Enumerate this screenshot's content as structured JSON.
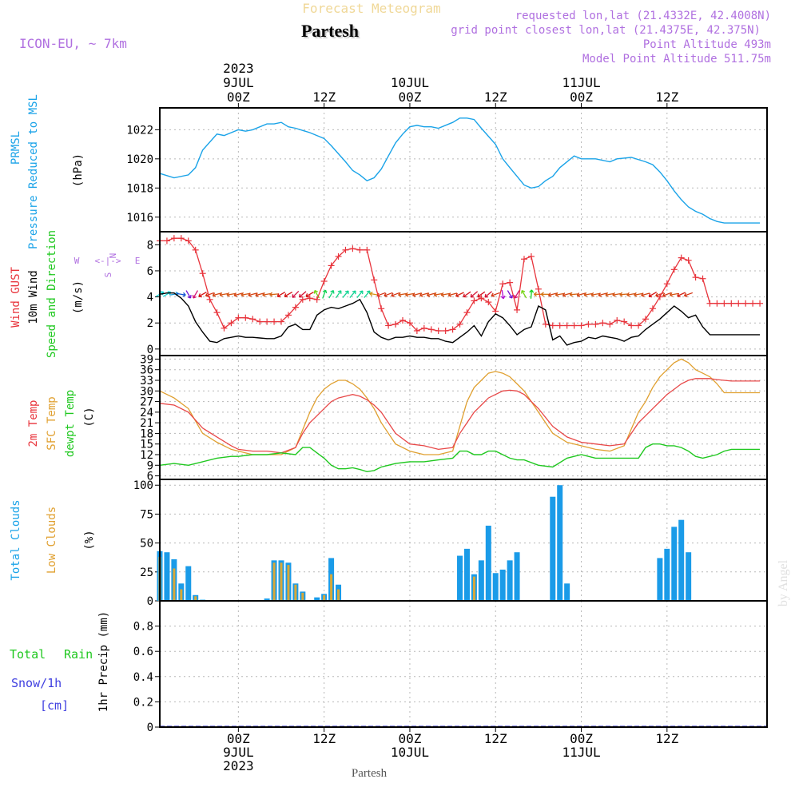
{
  "header": {
    "title": "Partesh",
    "subtitle": "Forecast Meteogram",
    "model": "ICON-EU, ~ 7km",
    "requested": "requested lon,lat (21.4332E, 42.4008N)",
    "grid_point": "grid point closest lon,lat (21.4375E, 42.375N)",
    "point_altitude": "Point Altitude 493m",
    "model_altitude": "Model Point Altitude 511.75m",
    "credit": "by Angel",
    "footer": "Partesh"
  },
  "time_axis": {
    "top_ticks": [
      {
        "hour": 0,
        "lines": [
          "2023",
          "9JUL",
          "00Z"
        ]
      },
      {
        "hour": 12,
        "lines": [
          "12Z"
        ]
      },
      {
        "hour": 24,
        "lines": [
          "10JUL",
          "00Z"
        ]
      },
      {
        "hour": 36,
        "lines": [
          "12Z"
        ]
      },
      {
        "hour": 48,
        "lines": [
          "11JUL",
          "00Z"
        ]
      },
      {
        "hour": 60,
        "lines": [
          "12Z"
        ]
      }
    ],
    "bottom_ticks": [
      {
        "hour": 0,
        "lines": [
          "00Z",
          "9JUL",
          "2023"
        ]
      },
      {
        "hour": 12,
        "lines": [
          "12Z"
        ]
      },
      {
        "hour": 24,
        "lines": [
          "00Z",
          "10JUL"
        ]
      },
      {
        "hour": 36,
        "lines": [
          "12Z"
        ]
      },
      {
        "hour": 48,
        "lines": [
          "00Z",
          "11JUL"
        ]
      },
      {
        "hour": 60,
        "lines": [
          "12Z"
        ]
      }
    ]
  },
  "panels": {
    "pressure": {
      "labels": [
        "PRMSL",
        "Pressure Reduced to MSL"
      ],
      "unit": "(hPa)"
    },
    "wind": {
      "labels": [
        "Wind GUST",
        "10m Wind",
        "Speed and Direction"
      ],
      "unit": "(m/s)",
      "compass": {
        "n": "N",
        "s": "S",
        "w": "W",
        "e": "E",
        "arrows_ns": "^ | v",
        "arrows_we": "<-|->"
      }
    },
    "temp": {
      "labels": [
        "2m Temp",
        "SFC Temp",
        "dewpt Temp"
      ],
      "unit": "(C)"
    },
    "clouds": {
      "labels": [
        "Total Clouds",
        "Low Clouds"
      ],
      "unit": "(%)"
    },
    "precip": {
      "labels": [
        "Total",
        "Rain",
        "Snow/1h",
        "[cm]"
      ],
      "axis_label": "1hr Precip (mm)"
    }
  },
  "colors": {
    "pressure": "#1aa3e8",
    "gust": "#e8343c",
    "wind": "#000000",
    "temp2m": "#e84848",
    "sfc": "#e0a030",
    "dewpt": "#20c820",
    "total_clouds": "#1a9be8",
    "low_clouds": "#d8a838",
    "purple_text": "#b070e0",
    "rain_text": "#20c820",
    "snow_text": "#4040e0"
  },
  "chart_data": [
    {
      "type": "line",
      "name": "pressure",
      "ylim": [
        1015,
        1023.5
      ],
      "yticks": [
        1016,
        1018,
        1020,
        1022
      ],
      "xlim": [
        -11,
        74
      ],
      "x": [
        -11,
        -9,
        -7,
        -6,
        -5,
        -3,
        -2,
        0,
        1,
        2,
        4,
        5,
        6,
        7,
        8,
        10,
        12,
        13,
        15,
        16,
        17,
        18,
        19,
        20,
        21,
        22,
        23,
        24,
        25,
        26,
        27,
        28,
        30,
        31,
        32,
        33,
        34,
        36,
        37,
        38,
        39,
        40,
        41,
        42,
        43,
        44,
        45,
        47,
        48,
        50,
        52,
        53,
        55,
        57,
        58,
        59,
        60,
        61,
        62,
        63,
        64,
        65,
        66,
        67,
        68,
        69,
        70,
        71,
        72,
        73
      ],
      "series": [
        {
          "name": "PRMSL",
          "values": [
            1019,
            1018.7,
            1018.9,
            1019.4,
            1020.6,
            1021.7,
            1021.6,
            1022.0,
            1021.9,
            1022.0,
            1022.4,
            1022.4,
            1022.5,
            1022.2,
            1022.1,
            1021.8,
            1021.4,
            1020.9,
            1019.8,
            1019.2,
            1018.9,
            1018.5,
            1018.7,
            1019.3,
            1020.2,
            1021.1,
            1021.7,
            1022.2,
            1022.3,
            1022.2,
            1022.2,
            1022.1,
            1022.5,
            1022.8,
            1022.8,
            1022.7,
            1022.1,
            1021.0,
            1020.0,
            1019.4,
            1018.8,
            1018.2,
            1018.0,
            1018.1,
            1018.5,
            1018.8,
            1019.4,
            1020.2,
            1020.0,
            1020.0,
            1019.8,
            1020.0,
            1020.1,
            1019.8,
            1019.6,
            1019.1,
            1018.5,
            1017.8,
            1017.2,
            1016.7,
            1016.4,
            1016.2,
            1015.9,
            1015.7,
            1015.6,
            1015.6,
            1015.6,
            1015.6,
            1015.6,
            1015.6
          ]
        }
      ]
    },
    {
      "type": "line",
      "name": "wind",
      "ylim": [
        -0.5,
        9
      ],
      "yticks": [
        0,
        2,
        4,
        6,
        8
      ],
      "xlim": [
        -11,
        74
      ],
      "x": [
        -11,
        -10,
        -9,
        -8,
        -7,
        -6,
        -5,
        -4,
        -3,
        -2,
        -1,
        0,
        1,
        2,
        3,
        4,
        5,
        6,
        7,
        8,
        9,
        10,
        11,
        12,
        13,
        14,
        15,
        16,
        17,
        18,
        19,
        20,
        21,
        22,
        23,
        24,
        25,
        26,
        27,
        28,
        29,
        30,
        31,
        32,
        33,
        34,
        35,
        36,
        37,
        38,
        39,
        40,
        41,
        42,
        43,
        44,
        45,
        46,
        47,
        48,
        49,
        50,
        51,
        52,
        53,
        54,
        55,
        56,
        57,
        58,
        59,
        60,
        61,
        62,
        63,
        64,
        65,
        66,
        67,
        68,
        69,
        70,
        71,
        72,
        73
      ],
      "series": [
        {
          "name": "Wind GUST",
          "values": [
            8.3,
            8.3,
            8.5,
            8.5,
            8.3,
            7.6,
            5.8,
            3.8,
            2.8,
            1.6,
            2.0,
            2.4,
            2.4,
            2.3,
            2.1,
            2.1,
            2.1,
            2.1,
            2.6,
            3.2,
            3.8,
            3.9,
            3.8,
            5.2,
            6.4,
            7.1,
            7.6,
            7.7,
            7.6,
            7.6,
            5.3,
            3.1,
            1.8,
            1.9,
            2.2,
            2.0,
            1.4,
            1.6,
            1.5,
            1.4,
            1.4,
            1.5,
            1.9,
            2.8,
            3.7,
            3.9,
            3.6,
            2.9,
            5.0,
            5.1,
            3.0,
            6.9,
            7.1,
            4.6,
            1.9,
            1.8,
            1.8,
            1.8,
            1.8,
            1.8,
            1.9,
            1.9,
            2.0,
            1.9,
            2.2,
            2.1,
            1.8,
            1.8,
            2.3,
            3.1,
            4.0,
            5.0,
            6.1,
            7.0,
            6.8,
            5.5,
            5.4,
            3.5,
            3.5,
            3.5,
            3.5,
            3.5,
            3.5,
            3.5,
            3.5
          ]
        },
        {
          "name": "10m Wind",
          "values": [
            4.2,
            4.3,
            4.3,
            3.9,
            3.3,
            2.1,
            1.3,
            0.6,
            0.5,
            0.8,
            0.9,
            1.0,
            0.9,
            0.9,
            0.85,
            0.8,
            0.8,
            1.0,
            1.7,
            1.9,
            1.5,
            1.5,
            2.6,
            3.0,
            3.2,
            3.1,
            3.3,
            3.5,
            3.8,
            2.8,
            1.3,
            0.9,
            0.7,
            0.9,
            0.9,
            1.0,
            0.9,
            0.9,
            0.8,
            0.8,
            0.6,
            0.5,
            0.9,
            1.3,
            1.8,
            1.0,
            2.1,
            2.7,
            2.4,
            1.8,
            1.1,
            1.5,
            1.7,
            3.3,
            3.0,
            0.7,
            1.0,
            0.3,
            0.5,
            0.6,
            0.9,
            0.8,
            1.0,
            0.9,
            0.8,
            0.6,
            0.9,
            1.0,
            1.5,
            1.9,
            2.3,
            2.8,
            3.3,
            2.9,
            2.4,
            2.6,
            1.7,
            1.1,
            1.1,
            1.1,
            1.1,
            1.1,
            1.1,
            1.1,
            1.1
          ]
        }
      ],
      "arrows": {
        "x": [
          -11,
          -10,
          -9,
          -8,
          -7,
          -6,
          -5,
          -4,
          -3,
          -2,
          -1,
          0,
          1,
          2,
          3,
          4,
          5,
          6,
          7,
          8,
          9,
          10,
          11,
          12,
          13,
          14,
          15,
          16,
          17,
          18,
          19,
          20,
          21,
          22,
          23,
          24,
          25,
          26,
          27,
          28,
          29,
          30,
          31,
          32,
          33,
          34,
          35,
          36,
          37,
          38,
          39,
          40,
          41,
          42,
          43,
          44,
          45,
          46,
          47,
          48,
          49,
          50,
          51,
          52,
          53,
          54,
          55,
          56,
          57,
          58,
          59,
          60,
          61,
          62,
          63
        ],
        "dir_deg": [
          60,
          60,
          80,
          100,
          150,
          210,
          240,
          250,
          255,
          260,
          260,
          255,
          260,
          255,
          255,
          260,
          265,
          240,
          240,
          225,
          230,
          240,
          330,
          20,
          30,
          35,
          40,
          40,
          40,
          40,
          280,
          250,
          250,
          250,
          260,
          260,
          255,
          255,
          255,
          260,
          260,
          255,
          245,
          235,
          230,
          235,
          230,
          250,
          170,
          150,
          210,
          330,
          5,
          270,
          270,
          255,
          260,
          255,
          265,
          255,
          260,
          260,
          255,
          260,
          260,
          265,
          260,
          260,
          255,
          240,
          250,
          250,
          260,
          245,
          250
        ]
      }
    },
    {
      "type": "line",
      "name": "temperature",
      "ylim": [
        5,
        40
      ],
      "yticks": [
        6,
        9,
        12,
        15,
        18,
        21,
        24,
        27,
        30,
        33,
        36,
        39
      ],
      "xlim": [
        -11,
        74
      ],
      "x": [
        -11,
        -9,
        -7,
        -5,
        -3,
        -1,
        0,
        2,
        4,
        6,
        8,
        9,
        10,
        11,
        12,
        13,
        14,
        15,
        16,
        17,
        18,
        19,
        20,
        21,
        22,
        24,
        26,
        28,
        30,
        31,
        32,
        33,
        34,
        35,
        36,
        37,
        38,
        39,
        40,
        42,
        44,
        46,
        48,
        50,
        52,
        54,
        56,
        57,
        58,
        59,
        60,
        61,
        62,
        63,
        64,
        65,
        66,
        67,
        68,
        69,
        70,
        71,
        72,
        73
      ],
      "series": [
        {
          "name": "2m Temp",
          "values": [
            26.5,
            26,
            24,
            19.5,
            17,
            14.5,
            13.5,
            13,
            13,
            12.5,
            14,
            18,
            21,
            23,
            25,
            27,
            28,
            28.5,
            29,
            28.5,
            27.5,
            26,
            24,
            21,
            18,
            15,
            14.5,
            13.5,
            14,
            18,
            21,
            24,
            26,
            28,
            29,
            30,
            30.2,
            30,
            29,
            25,
            20,
            17,
            15.5,
            15,
            14.5,
            15,
            21,
            23,
            25,
            27,
            29,
            30.5,
            32,
            33,
            33.5,
            33.5,
            33.5,
            33.2,
            33,
            32.8,
            32.8,
            32.8,
            32.8,
            32.8
          ]
        },
        {
          "name": "SFC Temp",
          "values": [
            30,
            28,
            25,
            18,
            15.5,
            13.5,
            13,
            12,
            12,
            12,
            14,
            19,
            24,
            28,
            30.5,
            32,
            33,
            33,
            32,
            30.5,
            28,
            25,
            21,
            18,
            15,
            13,
            12,
            12,
            13,
            20,
            27,
            31,
            33,
            35,
            35.5,
            35,
            34,
            32,
            30,
            24,
            18,
            15.5,
            14.5,
            13.5,
            13,
            14.5,
            24,
            27,
            31,
            34,
            36,
            38,
            39,
            38,
            36,
            35,
            34,
            32,
            29.5,
            29.5,
            29.5,
            29.5,
            29.5,
            29.5
          ]
        },
        {
          "name": "dewpt Temp",
          "values": [
            9,
            9.5,
            9,
            10,
            11,
            11.5,
            11.5,
            12,
            12,
            12.5,
            12,
            14,
            14,
            12.5,
            11,
            9,
            8,
            8,
            8.3,
            7.8,
            7.2,
            7.5,
            8.5,
            9,
            9.5,
            10,
            10,
            10.5,
            11,
            13,
            13,
            12,
            12,
            13,
            13,
            12,
            11,
            10.5,
            10.5,
            9,
            8.5,
            11,
            12,
            11,
            11,
            11,
            11,
            14,
            15,
            15,
            14.5,
            14.5,
            14,
            13,
            11.5,
            11,
            11.5,
            12,
            13,
            13.5,
            13.5,
            13.5,
            13.5,
            13.5
          ]
        }
      ]
    },
    {
      "type": "bar",
      "name": "clouds",
      "ylim": [
        0,
        105
      ],
      "yticks": [
        0,
        25,
        50,
        75,
        100
      ],
      "xlim": [
        -11,
        74
      ],
      "x": [
        -11,
        -10,
        -9,
        -8,
        -7,
        -6,
        -5,
        4,
        5,
        6,
        7,
        8,
        9,
        10,
        11,
        12,
        13,
        14,
        15,
        16,
        17,
        18,
        31,
        32,
        33,
        34,
        35,
        36,
        37,
        38,
        39,
        40,
        41,
        42,
        44,
        45,
        46,
        47,
        48,
        59,
        60,
        61,
        62,
        63,
        64
      ],
      "series": [
        {
          "name": "Total Clouds",
          "values": [
            43,
            42,
            36,
            15,
            30,
            5,
            1,
            2,
            35,
            35,
            33,
            15,
            8,
            0,
            3,
            6,
            37,
            14,
            0,
            0,
            0,
            0,
            39,
            45,
            23,
            35,
            65,
            24,
            27,
            35,
            42,
            0,
            0,
            0,
            90,
            100,
            15,
            0,
            0,
            37,
            45,
            64,
            70,
            42,
            0
          ]
        },
        {
          "name": "Low Clouds",
          "values": [
            38,
            0,
            28,
            10,
            0,
            4,
            0,
            0,
            33,
            33,
            31,
            14,
            7,
            0,
            0,
            5,
            23,
            10,
            0,
            0,
            0,
            0,
            0,
            0,
            21,
            0,
            0,
            0,
            0,
            0,
            0,
            0,
            0,
            0,
            0,
            0,
            0,
            0,
            0,
            0,
            0,
            0,
            0,
            0,
            0
          ]
        }
      ]
    },
    {
      "type": "line",
      "name": "precip",
      "ylim": [
        0,
        1.0
      ],
      "yticks": [
        0,
        0.2,
        0.4,
        0.6,
        0.8
      ],
      "xlim": [
        -11,
        74
      ],
      "x": [
        -11,
        73
      ],
      "series": [
        {
          "name": "1hr Precip",
          "values": [
            0,
            0
          ]
        }
      ]
    }
  ]
}
